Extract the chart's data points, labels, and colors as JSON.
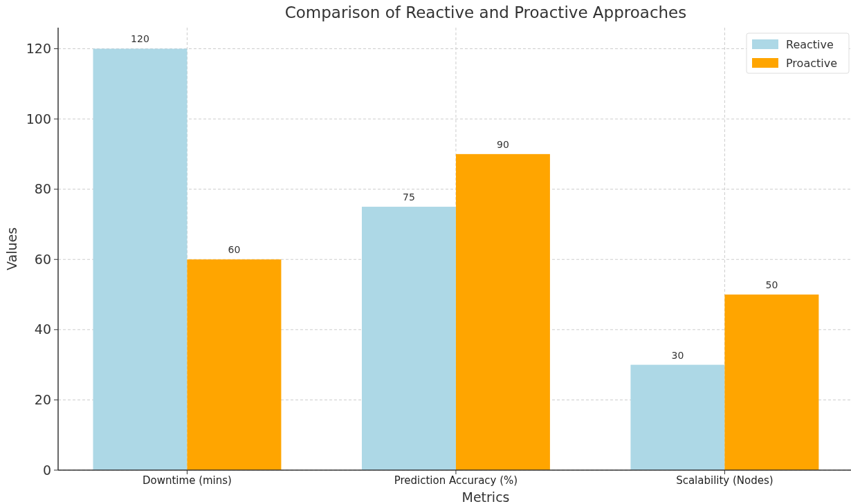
{
  "chart_data": {
    "type": "bar",
    "title": "Comparison of Reactive and Proactive Approaches",
    "xlabel": "Metrics",
    "ylabel": "Values",
    "categories": [
      "Downtime (mins)",
      "Prediction Accuracy (%)",
      "Scalability (Nodes)"
    ],
    "series": [
      {
        "name": "Reactive",
        "color": "#add8e6",
        "values": [
          120,
          75,
          30
        ]
      },
      {
        "name": "Proactive",
        "color": "#ffa500",
        "values": [
          60,
          90,
          50
        ]
      }
    ],
    "ylim": [
      0,
      126
    ],
    "yticks": [
      0,
      20,
      40,
      60,
      80,
      100,
      120
    ],
    "grid": true,
    "legend": "top right",
    "data_labels": true
  }
}
